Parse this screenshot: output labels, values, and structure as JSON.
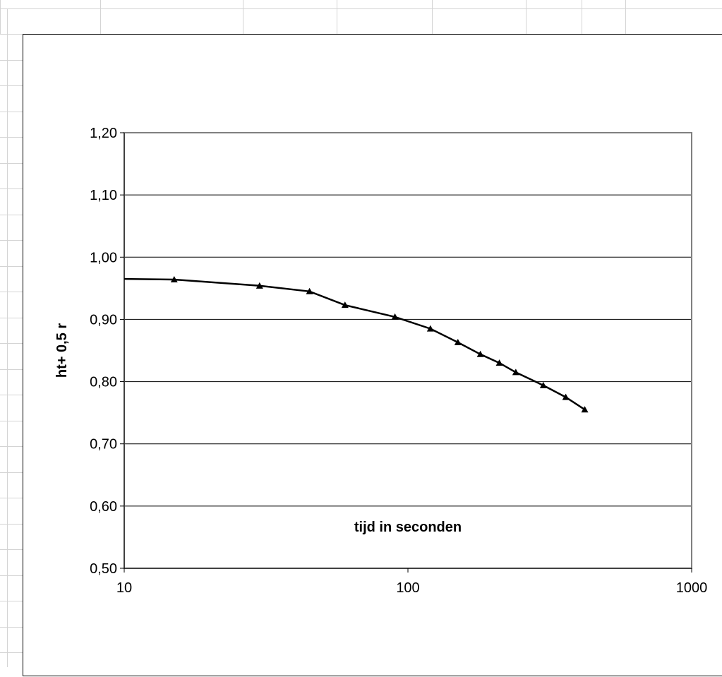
{
  "spreadsheet": {
    "gridline_color": "#d4d4d4"
  },
  "chart_data": {
    "type": "line",
    "title": "",
    "xlabel": "tijd in seconden",
    "ylabel": "ht+ 0,5 r",
    "x_scale": "log",
    "xlim": [
      10,
      1000
    ],
    "ylim": [
      0.5,
      1.2
    ],
    "x_ticks": [
      10,
      100,
      1000
    ],
    "x_tick_labels": [
      "10",
      "100",
      "1000"
    ],
    "y_ticks": [
      0.5,
      0.6,
      0.7,
      0.8,
      0.9,
      1.0,
      1.1,
      1.2
    ],
    "y_tick_labels": [
      "0,50",
      "0,60",
      "0,70",
      "0,80",
      "0,90",
      "1,00",
      "1,10",
      "1,20"
    ],
    "grid": "horizontal major gridlines",
    "legend": "none",
    "line_color": "#000000",
    "marker": "triangle",
    "series": [
      {
        "x": [
          0,
          15,
          30,
          45,
          60,
          90,
          120,
          150,
          180,
          210,
          240,
          300,
          360,
          420
        ],
        "y": [
          0.965,
          0.964,
          0.954,
          0.945,
          0.923,
          0.904,
          0.885,
          0.863,
          0.844,
          0.83,
          0.815,
          0.794,
          0.775,
          0.755
        ]
      }
    ]
  }
}
